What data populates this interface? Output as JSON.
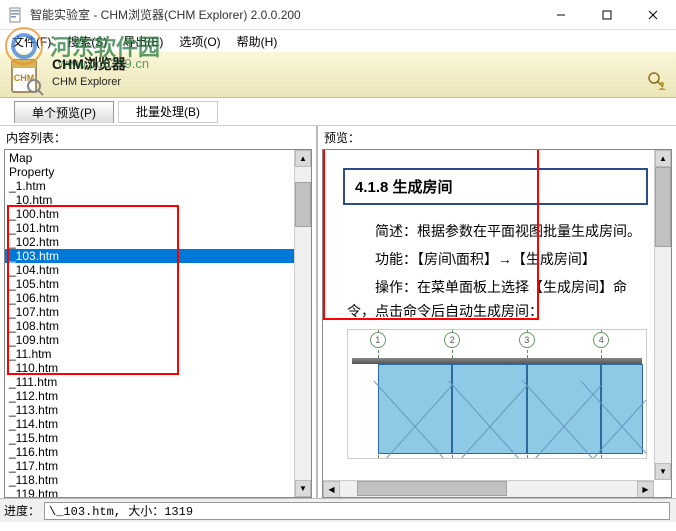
{
  "window": {
    "title": "智能实验室 - CHM浏览器(CHM Explorer) 2.0.0.200"
  },
  "menu": {
    "file": "文件(F)",
    "search": "搜索(S)",
    "export": "导出(E)",
    "options": "选项(O)",
    "help": "帮助(H)"
  },
  "watermark": {
    "text": "河东软件园",
    "url": "www.pc0359.cn"
  },
  "header": {
    "title": "CHM浏览器",
    "subtitle": "CHM Explorer"
  },
  "tabs": {
    "preview": "单个预览(P)",
    "batch": "批量处理(B)"
  },
  "left": {
    "label": "内容列表：",
    "items": [
      "Map",
      "Property",
      "_1.htm",
      "_10.htm",
      "_100.htm",
      "_101.htm",
      "_102.htm",
      "_103.htm",
      "_104.htm",
      "_105.htm",
      "_106.htm",
      "_107.htm",
      "_108.htm",
      "_109.htm",
      "_11.htm",
      "_110.htm",
      "_111.htm",
      "_112.htm",
      "_113.htm",
      "_114.htm",
      "_115.htm",
      "_116.htm",
      "_117.htm",
      "_118.htm",
      "_119.htm"
    ],
    "selected_index": 7
  },
  "right": {
    "label": "预览：",
    "heading": "4.1.8 生成房间",
    "para1": "简述：根据参数在平面视图批量生成房间。",
    "para2": "功能：【房间\\面积】→【生成房间】",
    "para3": "操作：在菜单面板上选择【生成房间】命令，点击命令后自动生成房间：",
    "grid_labels": [
      "1",
      "2",
      "3",
      "4"
    ]
  },
  "status": {
    "label": "进度：",
    "text": "\\_103.htm, 大小：1319"
  }
}
